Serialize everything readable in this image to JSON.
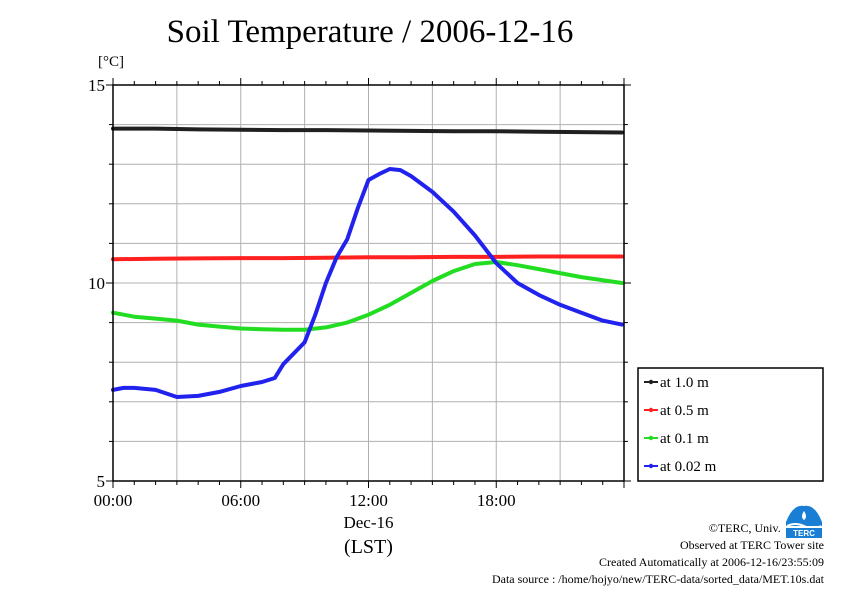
{
  "header": {
    "title": "Soil Temperature / 2006-12-16",
    "unit": "[°C]"
  },
  "footer": {
    "copyright": "©TERC, Univ. Tsukuba",
    "site": "Observed at TERC Tower site",
    "created": "Created Automatically at 2006-12-16/23:55:09",
    "source": "Data source : /home/hojyo/new/TERC-data/sorted_data/MET.10s.dat"
  },
  "logo": {
    "text": "TERC",
    "color": "#1a7fd4"
  },
  "chart_data": {
    "type": "line",
    "title": "Soil Temperature / 2006-12-16",
    "ylabel": "[°C]",
    "xlabel": "(LST)",
    "date_label": "Dec-16",
    "xlim": [
      0,
      24
    ],
    "ylim": [
      5,
      15
    ],
    "x_ticks": [
      {
        "value": 0,
        "label": "00:00"
      },
      {
        "value": 6,
        "label": "06:00"
      },
      {
        "value": 12,
        "label": "12:00"
      },
      {
        "value": 18,
        "label": "18:00"
      }
    ],
    "y_ticks": [
      {
        "value": 5,
        "label": "5"
      },
      {
        "value": 10,
        "label": "10"
      },
      {
        "value": 15,
        "label": "15"
      }
    ],
    "grid": true,
    "legend_position": "right",
    "series": [
      {
        "name": "at 1.0 m",
        "color": "#202020",
        "x": [
          0,
          2,
          4,
          6,
          8,
          10,
          12,
          14,
          16,
          18,
          20,
          22,
          23.9
        ],
        "y": [
          13.9,
          13.9,
          13.88,
          13.87,
          13.86,
          13.86,
          13.85,
          13.84,
          13.83,
          13.83,
          13.82,
          13.81,
          13.8
        ]
      },
      {
        "name": "at 0.5 m",
        "color": "#ff2020",
        "x": [
          0,
          2,
          4,
          6,
          8,
          10,
          12,
          14,
          16,
          18,
          20,
          22,
          23.9
        ],
        "y": [
          10.6,
          10.61,
          10.62,
          10.63,
          10.63,
          10.64,
          10.65,
          10.65,
          10.66,
          10.66,
          10.67,
          10.67,
          10.67
        ]
      },
      {
        "name": "at 0.1 m",
        "color": "#22dd22",
        "x": [
          0,
          1,
          2,
          3,
          4,
          5,
          6,
          7,
          8,
          9,
          10,
          11,
          12,
          13,
          14,
          15,
          16,
          17,
          18,
          19,
          20,
          21,
          22,
          23.9
        ],
        "y": [
          9.25,
          9.15,
          9.1,
          9.05,
          8.95,
          8.9,
          8.85,
          8.83,
          8.82,
          8.82,
          8.88,
          9.0,
          9.2,
          9.45,
          9.75,
          10.05,
          10.3,
          10.48,
          10.53,
          10.45,
          10.35,
          10.25,
          10.15,
          10.0
        ]
      },
      {
        "name": "at 0.02 m",
        "color": "#2222ee",
        "x": [
          0,
          0.5,
          1,
          2,
          3,
          4,
          5,
          6,
          7,
          7.6,
          8,
          9,
          9.5,
          10,
          10.5,
          11,
          11.5,
          12,
          12.5,
          13,
          13.5,
          14,
          15,
          16,
          17,
          18,
          19,
          20,
          21,
          22,
          23,
          23.9
        ],
        "y": [
          7.3,
          7.35,
          7.35,
          7.3,
          7.12,
          7.15,
          7.25,
          7.4,
          7.5,
          7.6,
          7.95,
          8.5,
          9.2,
          10.0,
          10.65,
          11.1,
          11.9,
          12.6,
          12.75,
          12.88,
          12.85,
          12.7,
          12.3,
          11.8,
          11.2,
          10.5,
          10.0,
          9.7,
          9.45,
          9.25,
          9.05,
          8.95
        ]
      }
    ]
  }
}
